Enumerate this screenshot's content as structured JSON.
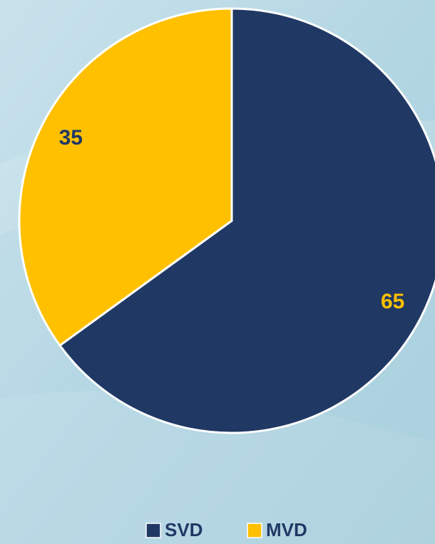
{
  "chart_data": {
    "type": "pie",
    "categories": [
      "SVD",
      "MVD"
    ],
    "values": [
      65,
      35
    ],
    "colors": [
      "#203864",
      "#ffc000"
    ],
    "legend": "bottom"
  }
}
